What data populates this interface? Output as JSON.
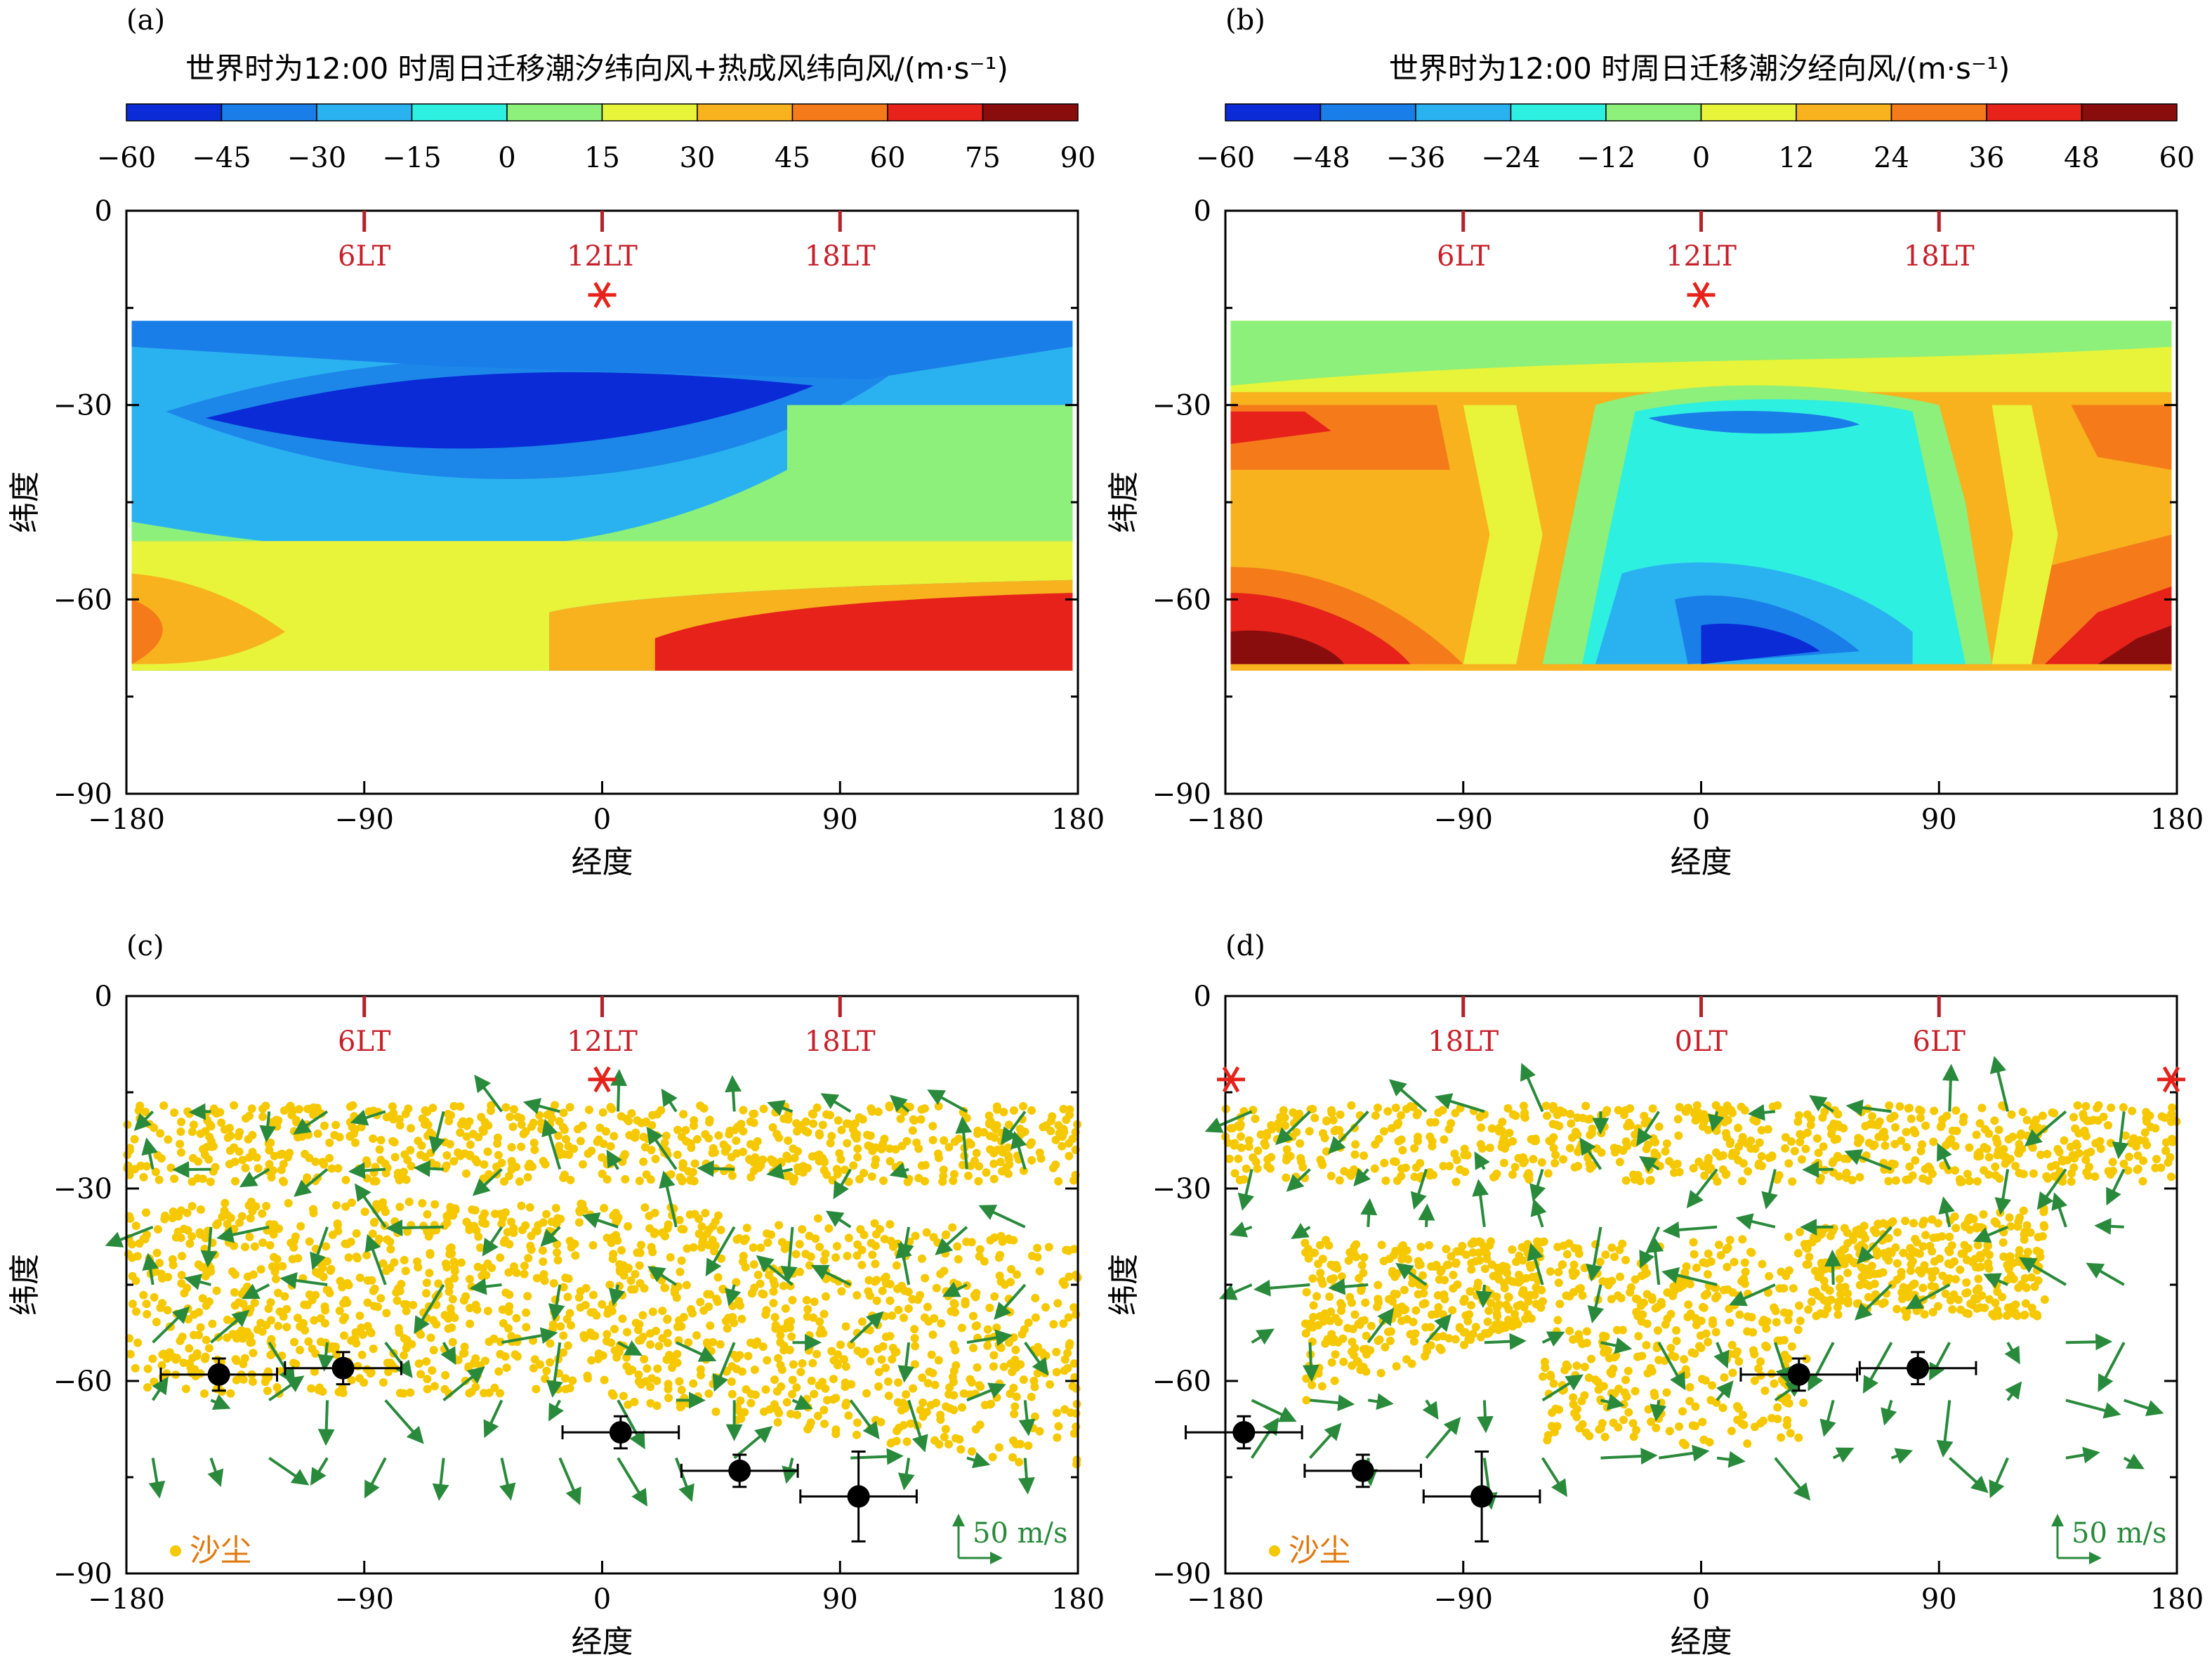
{
  "colorbar_a": {
    "title": "世界时为12:00 时周日迁移潮汐纬向风+热成风纬向风/(m·s⁻¹)",
    "ticks": [
      "−60",
      "−45",
      "−30",
      "−15",
      "0",
      "15",
      "30",
      "45",
      "60",
      "75",
      "90"
    ],
    "colors": [
      "#0a2bd6",
      "#1a7ee8",
      "#2ab2f0",
      "#2ef0e0",
      "#8cf07a",
      "#e8f43a",
      "#f7b21e",
      "#f47a1a",
      "#e6221a",
      "#8a0d0d"
    ]
  },
  "colorbar_b": {
    "title": "世界时为12:00 时周日迁移潮汐经向风/(m·s⁻¹)",
    "ticks": [
      "−60",
      "−48",
      "−36",
      "−24",
      "−12",
      "0",
      "12",
      "24",
      "36",
      "48",
      "60"
    ],
    "colors": [
      "#0a2bd6",
      "#1a7ee8",
      "#2ab2f0",
      "#2ef0e0",
      "#8cf07a",
      "#e8f43a",
      "#f7b21e",
      "#f47a1a",
      "#e6221a",
      "#8a0d0d"
    ]
  },
  "chart_data": [
    {
      "panel": "(a)",
      "type": "heatmap",
      "xlabel": "经度",
      "ylabel": "纬度",
      "xticks": [
        "−180",
        "−90",
        "0",
        "90",
        "180"
      ],
      "yticks": [
        "0",
        "−30",
        "−60",
        "−90"
      ],
      "xlim": [
        -180,
        180
      ],
      "ylim": [
        -90,
        0
      ],
      "lt_markers": [
        {
          "lon": -90,
          "label": "6LT"
        },
        {
          "lon": 0,
          "label": "12LT"
        },
        {
          "lon": 90,
          "label": "18LT"
        }
      ],
      "sun": {
        "lon": 0,
        "lat": -13
      },
      "data_lat_range": [
        -17,
        -70
      ],
      "description_levels": "zonal wind contours, range -60 to 90 m/s"
    },
    {
      "panel": "(b)",
      "type": "heatmap",
      "xlabel": "经度",
      "ylabel": "纬度",
      "xticks": [
        "−180",
        "−90",
        "0",
        "90",
        "180"
      ],
      "yticks": [
        "0",
        "−30",
        "−60",
        "−90"
      ],
      "xlim": [
        -180,
        180
      ],
      "ylim": [
        -90,
        0
      ],
      "lt_markers": [
        {
          "lon": -90,
          "label": "6LT"
        },
        {
          "lon": 0,
          "label": "12LT"
        },
        {
          "lon": 90,
          "label": "18LT"
        }
      ],
      "sun": {
        "lon": 0,
        "lat": -13
      },
      "data_lat_range": [
        -17,
        -70
      ]
    },
    {
      "panel": "(c)",
      "type": "scatter",
      "xlabel": "经度",
      "ylabel": "纬度",
      "xticks": [
        "−180",
        "−90",
        "0",
        "90",
        "180"
      ],
      "yticks": [
        "0",
        "−30",
        "−60",
        "−90"
      ],
      "xlim": [
        -180,
        180
      ],
      "ylim": [
        -90,
        0
      ],
      "lt_markers": [
        {
          "lon": -90,
          "label": "6LT"
        },
        {
          "lon": 0,
          "label": "12LT"
        },
        {
          "lon": 90,
          "label": "18LT"
        }
      ],
      "sun": {
        "lon": 0,
        "lat": -13
      },
      "legend": "沙尘",
      "scale_label": "50 m/s",
      "points": [
        {
          "lon": -145,
          "lat": -59,
          "xerr": 22,
          "yerr": 2.5
        },
        {
          "lon": -98,
          "lat": -58,
          "xerr": 22,
          "yerr": 2.5
        },
        {
          "lon": 7,
          "lat": -68,
          "xerr": 22,
          "yerr": 2.5
        },
        {
          "lon": 52,
          "lat": -74,
          "xerr": 22,
          "yerr": 2.5
        },
        {
          "lon": 97,
          "lat": -78,
          "xerr": 22,
          "yerr": 7
        }
      ]
    },
    {
      "panel": "(d)",
      "type": "scatter",
      "xlabel": "经度",
      "ylabel": "纬度",
      "xticks": [
        "−180",
        "−90",
        "0",
        "90",
        "180"
      ],
      "yticks": [
        "0",
        "−30",
        "−60",
        "−90"
      ],
      "xlim": [
        -180,
        180
      ],
      "ylim": [
        -90,
        0
      ],
      "lt_markers": [
        {
          "lon": -90,
          "label": "18LT"
        },
        {
          "lon": 0,
          "label": "0LT"
        },
        {
          "lon": 90,
          "label": "6LT"
        }
      ],
      "sun": {
        "lon": 180,
        "lat": -13
      },
      "legend": "沙尘",
      "scale_label": "50 m/s",
      "points": [
        {
          "lon": -173,
          "lat": -68,
          "xerr": 22,
          "yerr": 2.5
        },
        {
          "lon": -128,
          "lat": -74,
          "xerr": 22,
          "yerr": 2.5
        },
        {
          "lon": -83,
          "lat": -78,
          "xerr": 22,
          "yerr": 7
        },
        {
          "lon": 37,
          "lat": -59,
          "xerr": 22,
          "yerr": 2.5
        },
        {
          "lon": 82,
          "lat": -58,
          "xerr": 22,
          "yerr": 2.5
        }
      ]
    }
  ]
}
